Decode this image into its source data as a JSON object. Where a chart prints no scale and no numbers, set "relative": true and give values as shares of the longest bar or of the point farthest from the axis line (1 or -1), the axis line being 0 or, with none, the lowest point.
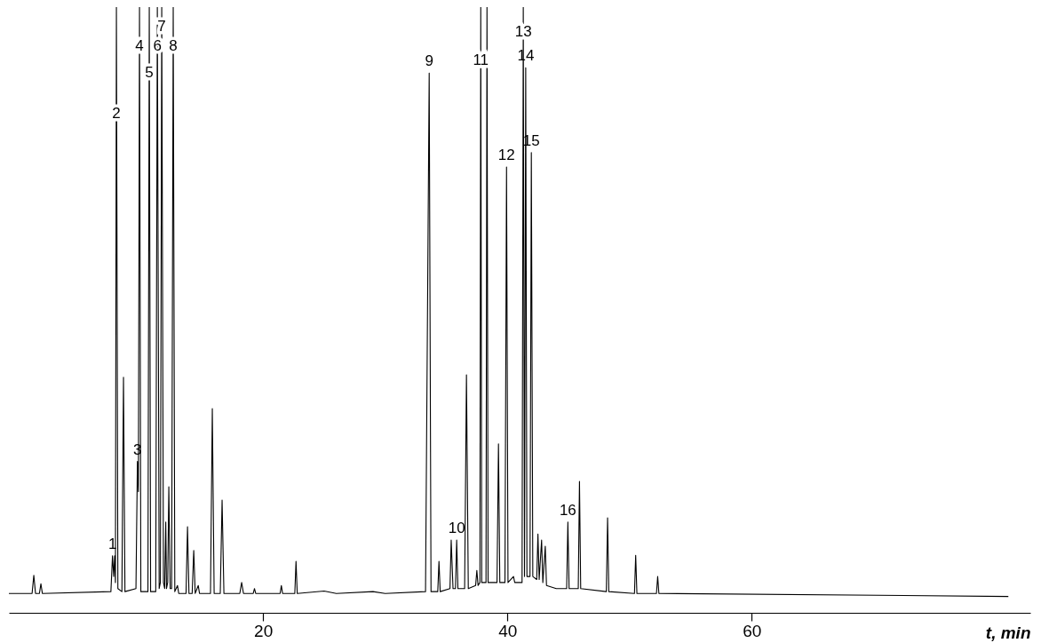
{
  "chart_data": {
    "type": "line",
    "relative": true,
    "xlabel": "t, min",
    "xlim": [
      -0.8,
      82.8
    ],
    "xticks": [
      20,
      40,
      60
    ],
    "grid": false,
    "marker": "none",
    "line_style": "solid",
    "x": [
      -0.8,
      1.1,
      1.24,
      1.38,
      1.7,
      1.82,
      1.94,
      7.55,
      7.68,
      7.78,
      7.86,
      7.92,
      8.0,
      8.12,
      8.45,
      8.58,
      8.7,
      9.6,
      9.72,
      9.8,
      9.89,
      10.0,
      10.58,
      10.69,
      10.8,
      11.22,
      11.35,
      11.5,
      11.6,
      11.71,
      11.85,
      11.95,
      12.04,
      12.1,
      12.2,
      12.29,
      12.4,
      12.52,
      12.65,
      12.78,
      13.0,
      13.1,
      13.7,
      13.82,
      13.94,
      14.2,
      14.33,
      14.45,
      14.7,
      14.8,
      15.7,
      15.85,
      16.0,
      16.5,
      16.65,
      16.8,
      18.1,
      18.25,
      18.4,
      19.2,
      19.3,
      19.4,
      21.4,
      21.5,
      21.6,
      22.6,
      22.7,
      22.8,
      25,
      26,
      29,
      30,
      33.3,
      33.6,
      33.75,
      34.3,
      34.4,
      34.5,
      35.3,
      35.4,
      35.55,
      35.75,
      35.85,
      35.95,
      36.5,
      36.65,
      36.8,
      37.4,
      37.5,
      37.6,
      37.75,
      37.82,
      37.9,
      38.25,
      38.33,
      38.42,
      39.15,
      39.27,
      39.38,
      39.8,
      39.93,
      40.05,
      40.5,
      40.6,
      41.2,
      41.3,
      41.4,
      41.5,
      41.6,
      41.85,
      41.96,
      42.08,
      42.4,
      42.5,
      42.6,
      42.8,
      42.9,
      43.1,
      43.2,
      44.0,
      44.85,
      44.95,
      45.05,
      45.8,
      45.9,
      46.0,
      48.1,
      48.2,
      48.3,
      50.4,
      50.5,
      50.6,
      52.2,
      52.3,
      52.4,
      81.0
    ],
    "values": [
      0.032,
      0.032,
      0.062,
      0.032,
      0.032,
      0.048,
      0.032,
      0.035,
      0.094,
      0.06,
      0.094,
      0.05,
      1.0,
      0.04,
      0.035,
      0.389,
      0.035,
      0.04,
      0.25,
      0.2,
      1.0,
      0.035,
      0.035,
      1.0,
      0.035,
      0.035,
      1.0,
      0.04,
      0.05,
      1.0,
      0.05,
      0.04,
      0.15,
      0.04,
      0.05,
      0.208,
      0.04,
      0.04,
      1.0,
      0.035,
      0.045,
      0.032,
      0.032,
      0.142,
      0.032,
      0.032,
      0.103,
      0.032,
      0.045,
      0.032,
      0.032,
      0.337,
      0.032,
      0.032,
      0.186,
      0.032,
      0.032,
      0.05,
      0.032,
      0.032,
      0.04,
      0.032,
      0.032,
      0.045,
      0.032,
      0.032,
      0.085,
      0.032,
      0.036,
      0.032,
      0.035,
      0.032,
      0.035,
      0.891,
      0.035,
      0.035,
      0.085,
      0.035,
      0.04,
      0.12,
      0.04,
      0.04,
      0.12,
      0.04,
      0.04,
      0.393,
      0.04,
      0.045,
      0.07,
      0.045,
      0.05,
      1.0,
      0.05,
      0.05,
      1.0,
      0.05,
      0.05,
      0.279,
      0.05,
      0.05,
      0.736,
      0.05,
      0.06,
      0.05,
      0.05,
      1.0,
      0.06,
      0.9,
      0.06,
      0.06,
      0.76,
      0.06,
      0.055,
      0.13,
      0.055,
      0.12,
      0.05,
      0.11,
      0.045,
      0.04,
      0.04,
      0.15,
      0.04,
      0.04,
      0.217,
      0.04,
      0.035,
      0.157,
      0.035,
      0.032,
      0.095,
      0.032,
      0.032,
      0.06,
      0.032,
      0.027
    ],
    "color": "#000000",
    "annotations": [
      {
        "text": "1",
        "x": 7.68,
        "y": 0.094
      },
      {
        "text": "2",
        "x": 8.0,
        "y": 0.824
      },
      {
        "text": "3",
        "x": 9.72,
        "y": 0.25
      },
      {
        "text": "4",
        "x": 9.89,
        "y": 0.935
      },
      {
        "text": "5",
        "x": 10.69,
        "y": 0.891
      },
      {
        "text": "6",
        "x": 11.35,
        "y": 0.935
      },
      {
        "text": "7",
        "x": 11.71,
        "y": 0.968
      },
      {
        "text": "8",
        "x": 12.65,
        "y": 0.935
      },
      {
        "text": "9",
        "x": 33.6,
        "y": 0.891
      },
      {
        "text": "10",
        "x": 35.85,
        "y": 0.12
      },
      {
        "text": "11",
        "x": 37.82,
        "y": 0.912
      },
      {
        "text": "12",
        "x": 39.93,
        "y": 0.736
      },
      {
        "text": "13",
        "x": 41.3,
        "y": 0.959
      },
      {
        "text": "14",
        "x": 41.5,
        "y": 0.9
      },
      {
        "text": "15",
        "x": 41.96,
        "y": 0.76
      },
      {
        "text": "16",
        "x": 44.95,
        "y": 0.15
      }
    ]
  }
}
